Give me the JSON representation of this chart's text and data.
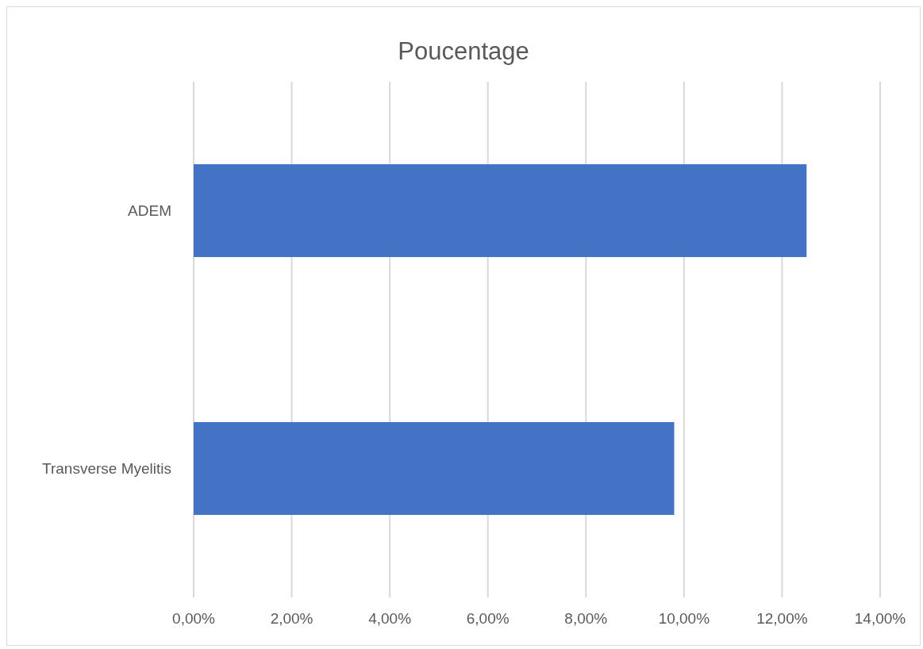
{
  "chart_data": {
    "type": "bar",
    "orientation": "horizontal",
    "title": "Poucentage",
    "categories": [
      "ADEM",
      "Transverse Myelitis"
    ],
    "values": [
      12.5,
      9.8
    ],
    "color": "#4472c4",
    "xlim": [
      0,
      14
    ],
    "xticks": [
      {
        "value": 0,
        "label": "0,00%"
      },
      {
        "value": 2,
        "label": "2,00%"
      },
      {
        "value": 4,
        "label": "4,00%"
      },
      {
        "value": 6,
        "label": "6,00%"
      },
      {
        "value": 8,
        "label": "8,00%"
      },
      {
        "value": 10,
        "label": "10,00%"
      },
      {
        "value": 12,
        "label": "12,00%"
      },
      {
        "value": 14,
        "label": "14,00%"
      }
    ],
    "grid": "x"
  }
}
